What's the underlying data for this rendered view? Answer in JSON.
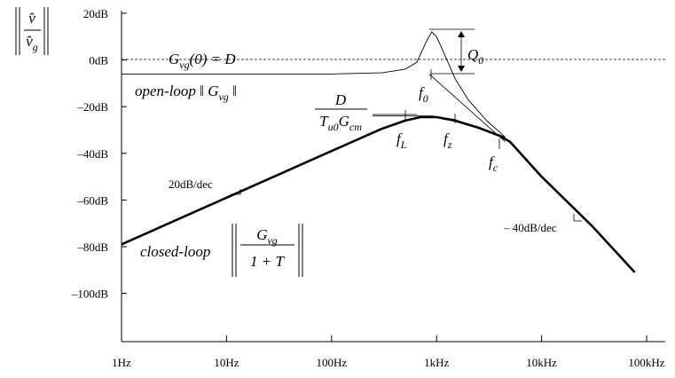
{
  "chart_data": {
    "type": "line",
    "y_label": {
      "numerator": "v̂",
      "denominator": [
        {
          "text": "v̂"
        },
        {
          "text": "g",
          "sub": true
        }
      ]
    },
    "log_x": true,
    "grid": false,
    "xlim": [
      1,
      100000
    ],
    "xticks": [
      {
        "value": 1,
        "label": "1Hz"
      },
      {
        "value": 10,
        "label": "10Hz"
      },
      {
        "value": 100,
        "label": "100Hz"
      },
      {
        "value": 1000,
        "label": "1kHz"
      },
      {
        "value": 10000,
        "label": "10kHz"
      },
      {
        "value": 100000,
        "label": "100kHz"
      }
    ],
    "ylim": [
      -121,
      20
    ],
    "yticks": [
      {
        "value": 20,
        "label": "20dB"
      },
      {
        "value": 0,
        "label": "0dB"
      },
      {
        "value": -20,
        "label": "–20dB"
      },
      {
        "value": -40,
        "label": "–40dB"
      },
      {
        "value": -60,
        "label": "–60dB"
      },
      {
        "value": -80,
        "label": "–80dB"
      },
      {
        "value": -100,
        "label": "–100dB"
      }
    ],
    "series": [
      {
        "color": "#000000",
        "width": 2.6,
        "x": [
          1,
          10,
          100,
          300,
          500,
          700,
          1000,
          1500,
          2500,
          4000,
          5000,
          10000,
          30000,
          77000
        ],
        "values": [
          -79,
          -59,
          -39,
          -29.5,
          -26,
          -24.5,
          -24.5,
          -26,
          -29,
          -32.5,
          -35,
          -50,
          -71,
          -91
        ]
      },
      {
        "color": "#000000",
        "width": 0.9,
        "x": [
          1,
          100,
          300,
          500,
          650,
          800,
          900,
          1000,
          1200,
          1500,
          2000,
          3000,
          4500
        ],
        "values": [
          -6,
          -6,
          -5.5,
          -4,
          -1,
          8,
          12,
          10,
          2,
          -8,
          -17,
          -26,
          -33
        ]
      },
      {
        "color": "#000000",
        "width": 0.8,
        "x": [
          850,
          4500
        ],
        "values": [
          -6,
          -35
        ]
      },
      {
        "color": "#000000",
        "width": 0.8,
        "x": [
          245,
          900,
          1500,
          4500
        ],
        "values": [
          -24,
          -24,
          -25.5,
          -33
        ]
      }
    ],
    "annotations": [
      [
        {
          "text": "G"
        },
        {
          "text": "vg",
          "sub": true
        },
        {
          "text": "(0) = D"
        }
      ],
      [
        {
          "text": "open-loop ‖ G"
        },
        {
          "text": "vg",
          "sub": true
        },
        {
          "text": " ‖"
        }
      ],
      [
        {
          "text": "f"
        },
        {
          "text": "0",
          "sub": true
        }
      ],
      [
        {
          "text": "Q"
        },
        {
          "text": "0",
          "sub": true
        }
      ],
      [
        {
          "text": "f"
        },
        {
          "text": "L",
          "sub": true
        }
      ],
      [
        {
          "text": "f"
        },
        {
          "text": "z",
          "sub": true
        }
      ],
      [
        {
          "text": "f"
        },
        {
          "text": "c",
          "sub": true
        }
      ],
      [
        {
          "text": "20dB/dec"
        }
      ],
      [
        {
          "text": "– 40dB/dec"
        }
      ],
      [
        {
          "text": "closed-loop"
        }
      ],
      [
        {
          "text": "G"
        },
        {
          "text": "vg",
          "sub": true
        }
      ],
      [
        {
          "text": "1 + T"
        }
      ],
      [
        {
          "text": "D"
        }
      ],
      [
        {
          "text": "T"
        },
        {
          "text": "u0",
          "sub": true
        },
        {
          "text": "G"
        },
        {
          "text": "cm",
          "sub": true
        }
      ]
    ]
  }
}
